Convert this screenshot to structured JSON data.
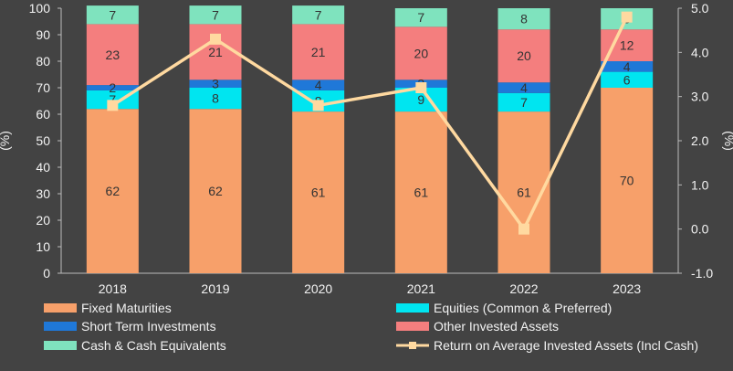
{
  "chart_data": {
    "type": "bar",
    "stacked": true,
    "categories": [
      "2018",
      "2019",
      "2020",
      "2021",
      "2022",
      "2023"
    ],
    "series": [
      {
        "name": "Fixed Maturities",
        "color": "#F7A06A",
        "values": [
          62,
          62,
          61,
          61,
          61,
          70
        ]
      },
      {
        "name": "Equities (Common & Preferred)",
        "color": "#00E5F0",
        "values": [
          7,
          8,
          8,
          9,
          7,
          6
        ]
      },
      {
        "name": "Short Term Investments",
        "color": "#1F78D8",
        "values": [
          2,
          3,
          4,
          3,
          4,
          4
        ]
      },
      {
        "name": "Other Invested Assets",
        "color": "#F47E7E",
        "values": [
          23,
          21,
          21,
          20,
          20,
          12
        ]
      },
      {
        "name": "Cash & Cash Equivalents",
        "color": "#7FE3BE",
        "values": [
          7,
          7,
          7,
          7,
          8,
          8
        ]
      }
    ],
    "line_series": {
      "name": "Return on Average Invested Assets (Incl Cash)",
      "color": "#FFD9A0",
      "axis": "right",
      "values": [
        2.8,
        4.3,
        2.8,
        3.2,
        0.0,
        4.8
      ]
    },
    "ylabel": "(%)",
    "y2label": "(%)",
    "ylim": [
      0,
      100
    ],
    "y2lim": [
      -1.0,
      5.0
    ],
    "yticks": [
      "0",
      "10",
      "20",
      "30",
      "40",
      "50",
      "60",
      "70",
      "80",
      "90",
      "100"
    ],
    "y2ticks": [
      "-1.0",
      "0.0",
      "1.0",
      "2.0",
      "3.0",
      "4.0",
      "5.0"
    ],
    "grid": false,
    "legend_position": "bottom"
  }
}
